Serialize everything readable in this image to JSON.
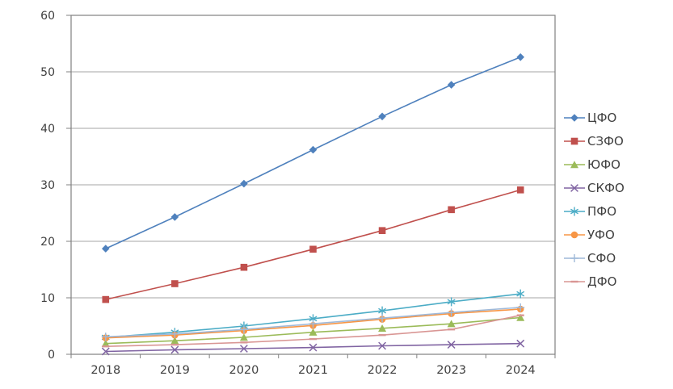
{
  "chart_data": {
    "type": "line",
    "title": "",
    "xlabel": "",
    "ylabel": "",
    "categories": [
      "2018",
      "2019",
      "2020",
      "2021",
      "2022",
      "2023",
      "2024"
    ],
    "series": [
      {
        "name": "ЦФО",
        "color": "#4f81bd",
        "marker": "diamond",
        "values": [
          18.7,
          24.3,
          30.2,
          36.2,
          42.1,
          47.7,
          52.6
        ]
      },
      {
        "name": "СЗФО",
        "color": "#c0504d",
        "marker": "square",
        "values": [
          9.7,
          12.5,
          15.4,
          18.6,
          21.9,
          25.6,
          29.1
        ]
      },
      {
        "name": "ЮФО",
        "color": "#9bbb59",
        "marker": "triangle",
        "values": [
          1.9,
          2.4,
          3.0,
          3.9,
          4.6,
          5.4,
          6.5
        ]
      },
      {
        "name": "СКФО",
        "color": "#8064a2",
        "marker": "x",
        "values": [
          0.5,
          0.8,
          1.0,
          1.2,
          1.5,
          1.7,
          1.9
        ]
      },
      {
        "name": "ПФО",
        "color": "#4bacc6",
        "marker": "asterisk",
        "values": [
          3.0,
          3.9,
          5.0,
          6.3,
          7.7,
          9.3,
          10.7
        ]
      },
      {
        "name": "УФО",
        "color": "#f79646",
        "marker": "circle",
        "values": [
          2.9,
          3.4,
          4.2,
          5.1,
          6.2,
          7.2,
          8.0
        ]
      },
      {
        "name": "СФО",
        "color": "#9fb9d9",
        "marker": "plus",
        "values": [
          3.1,
          3.6,
          4.4,
          5.4,
          6.4,
          7.4,
          8.3
        ]
      },
      {
        "name": "ДФО",
        "color": "#d99694",
        "marker": "dash",
        "values": [
          1.4,
          1.7,
          2.1,
          2.7,
          3.4,
          4.4,
          6.9
        ]
      }
    ],
    "ylim": [
      0,
      60
    ],
    "yticks": [
      0,
      10,
      20,
      30,
      40,
      50,
      60
    ],
    "grid": "horizontal",
    "legend_position": "right",
    "colors": {
      "axis_text": "#404040",
      "gridline": "#a6a6a6",
      "axis_line": "#808080",
      "background": "#ffffff"
    }
  }
}
